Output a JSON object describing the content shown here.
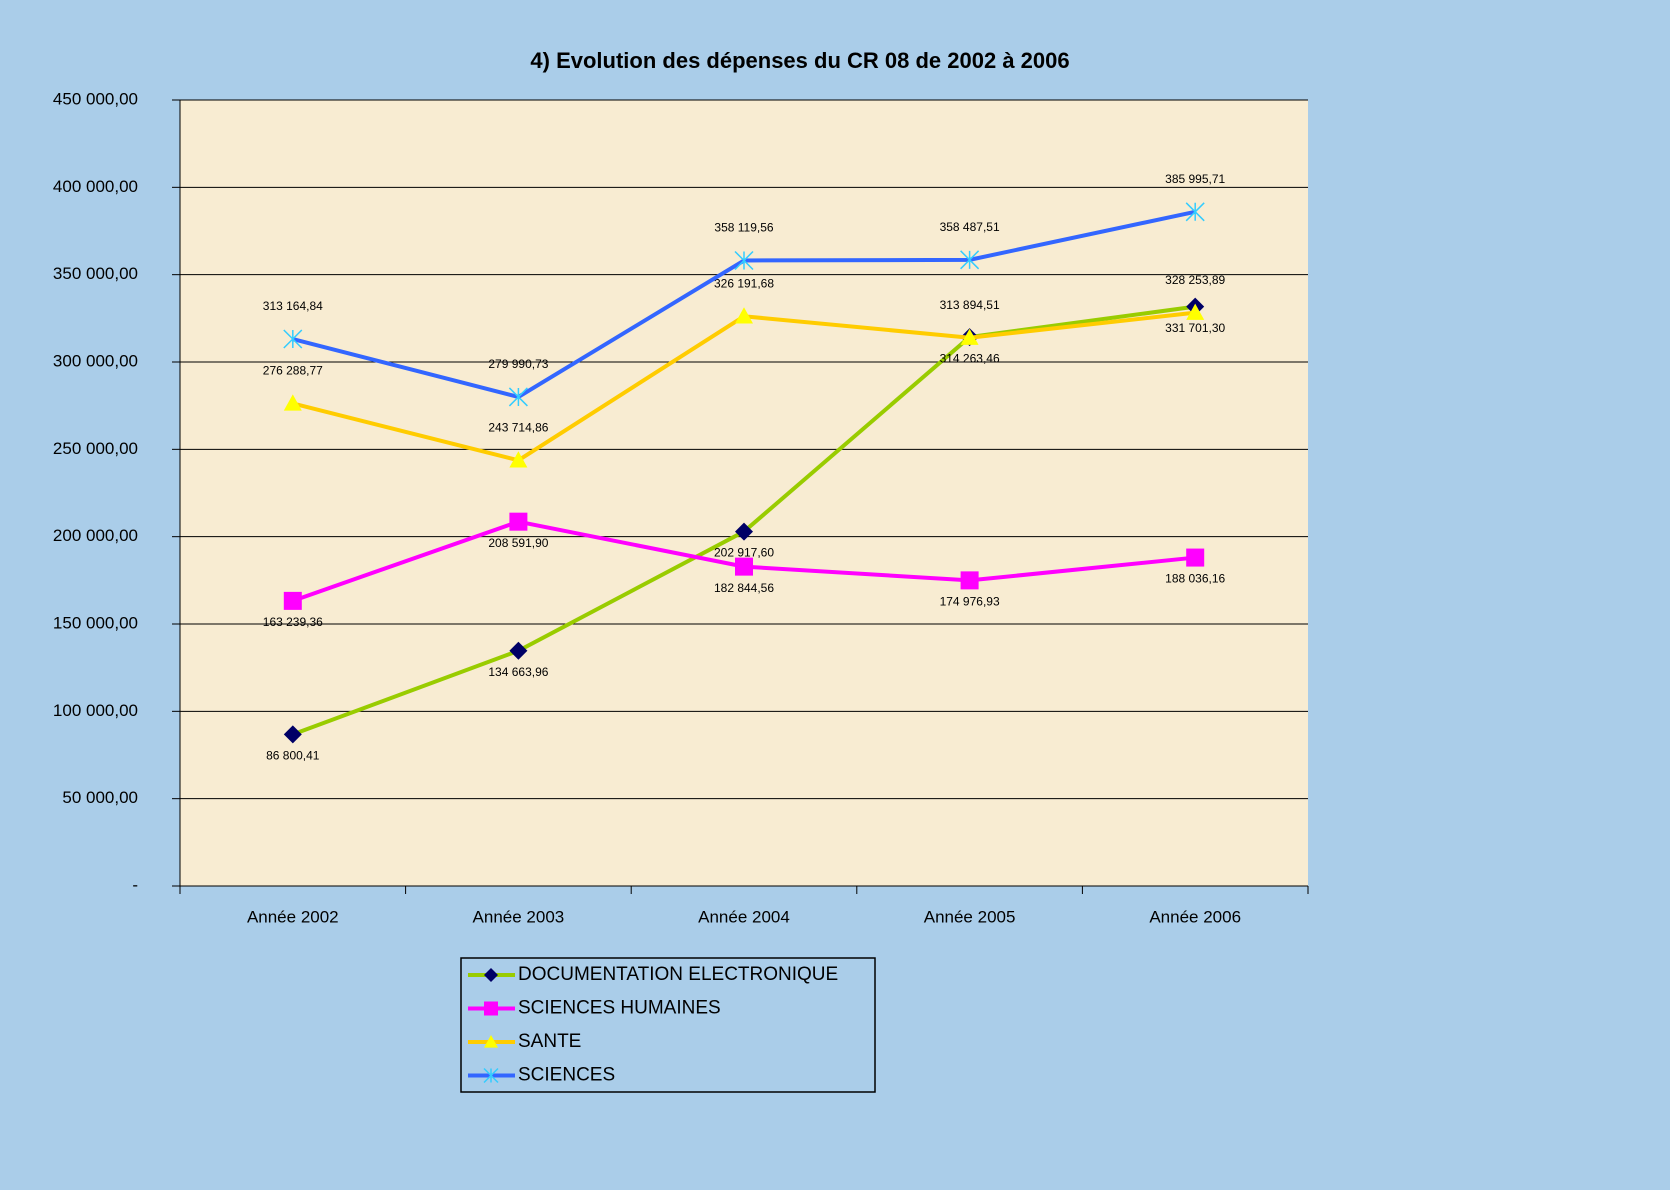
{
  "chart_data": {
    "type": "line",
    "title": "4) Evolution des dépenses du CR 08 de 2002 à 2006",
    "categories": [
      "Année 2002",
      "Année 2003",
      "Année 2004",
      "Année 2005",
      "Année 2006"
    ],
    "ylim": [
      0,
      450000
    ],
    "yticks": [
      {
        "value": 0,
        "label": "-"
      },
      {
        "value": 50000,
        "label": "50 000,00"
      },
      {
        "value": 100000,
        "label": "100 000,00"
      },
      {
        "value": 150000,
        "label": "150 000,00"
      },
      {
        "value": 200000,
        "label": "200 000,00"
      },
      {
        "value": 250000,
        "label": "250 000,00"
      },
      {
        "value": 300000,
        "label": "300 000,00"
      },
      {
        "value": 350000,
        "label": "350 000,00"
      },
      {
        "value": 400000,
        "label": "400 000,00"
      },
      {
        "value": 450000,
        "label": "450 000,00"
      }
    ],
    "grid": true,
    "legend": "bottom",
    "series": [
      {
        "name": "DOCUMENTATION ELECTRONIQUE",
        "color": "#99cc00",
        "marker": "diamond",
        "marker_color": "#000066",
        "values": [
          86800.41,
          134663.96,
          202917.6,
          314263.46,
          331701.3
        ],
        "value_labels": [
          "86 800,41",
          "134 663,96",
          "202 917,60",
          "314 263,46",
          "331 701,30"
        ]
      },
      {
        "name": "SCIENCES HUMAINES",
        "color": "#ff00ff",
        "marker": "square",
        "marker_color": "#ff00ff",
        "values": [
          163239.36,
          208591.9,
          182844.56,
          174976.93,
          188036.16
        ],
        "value_labels": [
          "163 239,36",
          "208 591,90",
          "182 844,56",
          "174 976,93",
          "188 036,16"
        ]
      },
      {
        "name": "SANTE",
        "color": "#ffcc00",
        "marker": "triangle",
        "marker_color": "#ffff00",
        "values": [
          276288.77,
          243714.86,
          326191.68,
          313894.51,
          328253.89
        ],
        "value_labels": [
          "276 288,77",
          "243 714,86",
          "326 191,68",
          "313 894,51",
          "328 253,89"
        ]
      },
      {
        "name": "SCIENCES",
        "color": "#3366ff",
        "marker": "star",
        "marker_color": "#33ccff",
        "values": [
          313164.84,
          279990.73,
          358119.56,
          358487.51,
          385995.71
        ],
        "value_labels": [
          "313 164,84",
          "279 990,73",
          "358 119,56",
          "358 487,51",
          "385 995,71"
        ]
      }
    ]
  }
}
